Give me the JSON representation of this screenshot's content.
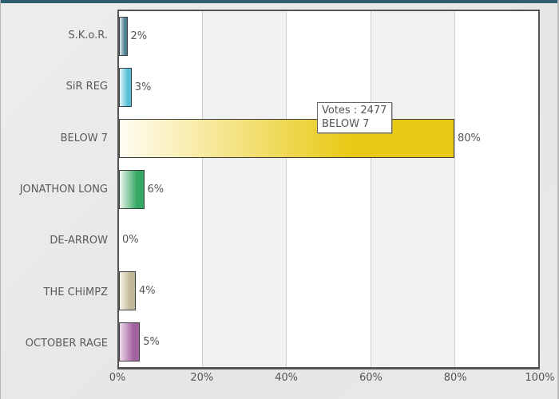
{
  "page": {
    "background_color": "#e8e8e8",
    "accent_bar_color": "#2e5f70"
  },
  "chart_data": {
    "type": "bar",
    "orientation": "horizontal",
    "title": "",
    "xlabel": "",
    "ylabel": "",
    "xlim": [
      0,
      100
    ],
    "grid": true,
    "legend": "none",
    "plot_band_colors": [
      "#ffffff",
      "#f1f1f1"
    ],
    "gridline_color": "#cfcfcf",
    "categories": [
      "S.K.o.R.",
      "SiR REG",
      "BELOW 7",
      "JONATHON LONG",
      "DE-ARROW",
      "THE CHiMPZ",
      "OCTOBER RAGE"
    ],
    "values": [
      2,
      3,
      80,
      6,
      0,
      4,
      5
    ],
    "value_labels": [
      "2%",
      "3%",
      "80%",
      "6%",
      "0%",
      "4%",
      "5%"
    ],
    "bar_colors": [
      "#4f7f94",
      "#55bfd8",
      "#e8c913",
      "#36a865",
      "#c1b897",
      "#a363a0"
    ],
    "bar_colors_map": [
      0,
      1,
      2,
      3,
      4,
      4,
      5
    ],
    "bar_colors_light": [
      "#dde9ee",
      "#e2f5f9",
      "#fffdf0",
      "#edf7ee",
      "#f6f3e8",
      "#eed9ec"
    ],
    "x_ticks": [
      "0%",
      "20%",
      "40%",
      "60%",
      "80%",
      "100%"
    ]
  },
  "tooltip": {
    "line1": "Votes : 2477",
    "line2": "BELOW 7"
  }
}
